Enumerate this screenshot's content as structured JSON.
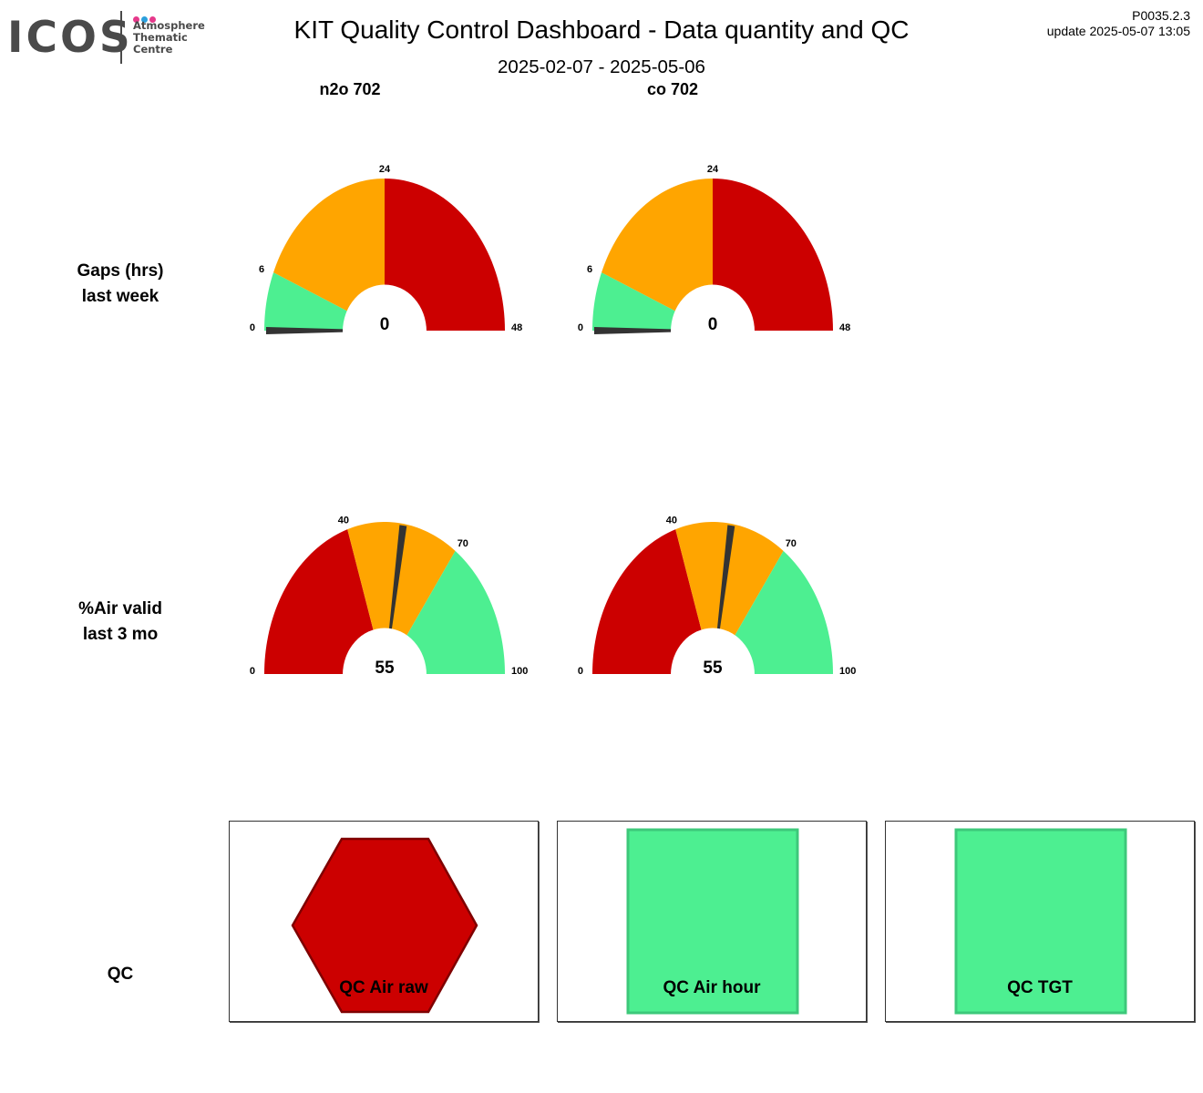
{
  "logo": {
    "wordmark": "ICOS",
    "subtitle_lines": [
      "Atmosphere",
      "Thematic",
      "Centre"
    ],
    "dot_colors": [
      "#e6398b",
      "#2b9fdc",
      "#e6398b"
    ]
  },
  "header": {
    "title": "KIT  Quality Control Dashboard - Data quantity and QC",
    "date_range": "2025-02-07 - 2025-05-06",
    "version": "P0035.2.3",
    "update": "update  2025-05-07 13:05"
  },
  "columns": [
    "n2o 702",
    "co 702"
  ],
  "rows": {
    "gaps": {
      "line1": "Gaps (hrs)",
      "line2": "last week"
    },
    "air": {
      "line1": "%Air valid",
      "line2": "last 3 mo"
    },
    "qc": "QC"
  },
  "colors": {
    "red": "#cc0000",
    "orange": "#ffa500",
    "green": "#4def91",
    "needle": "#333333",
    "hex_stroke": "#7f0000",
    "square_stroke": "#3dc87a"
  },
  "chart_data": [
    {
      "type": "gauge",
      "title": "n2o 702",
      "row": "Gaps (hrs) last week",
      "min": 0,
      "max": 48,
      "value": 0,
      "value_label": "0",
      "bands": [
        {
          "from": 0,
          "to": 6,
          "color": "#4def91"
        },
        {
          "from": 6,
          "to": 24,
          "color": "#ffa500"
        },
        {
          "from": 24,
          "to": 48,
          "color": "#cc0000"
        }
      ],
      "tick_labels": [
        {
          "value": 0,
          "label": "0"
        },
        {
          "value": 6,
          "label": "6"
        },
        {
          "value": 24,
          "label": "24"
        },
        {
          "value": 48,
          "label": "48"
        }
      ]
    },
    {
      "type": "gauge",
      "title": "co 702",
      "row": "Gaps (hrs) last week",
      "min": 0,
      "max": 48,
      "value": 0,
      "value_label": "0",
      "bands": [
        {
          "from": 0,
          "to": 6,
          "color": "#4def91"
        },
        {
          "from": 6,
          "to": 24,
          "color": "#ffa500"
        },
        {
          "from": 24,
          "to": 48,
          "color": "#cc0000"
        }
      ],
      "tick_labels": [
        {
          "value": 0,
          "label": "0"
        },
        {
          "value": 6,
          "label": "6"
        },
        {
          "value": 24,
          "label": "24"
        },
        {
          "value": 48,
          "label": "48"
        }
      ]
    },
    {
      "type": "gauge",
      "title": "n2o 702",
      "row": "%Air valid last 3 mo",
      "min": 0,
      "max": 100,
      "value": 55,
      "value_label": "55",
      "bands": [
        {
          "from": 0,
          "to": 40,
          "color": "#cc0000"
        },
        {
          "from": 40,
          "to": 70,
          "color": "#ffa500"
        },
        {
          "from": 70,
          "to": 100,
          "color": "#4def91"
        }
      ],
      "tick_labels": [
        {
          "value": 0,
          "label": "0"
        },
        {
          "value": 40,
          "label": "40"
        },
        {
          "value": 70,
          "label": "70"
        },
        {
          "value": 100,
          "label": "100"
        }
      ]
    },
    {
      "type": "gauge",
      "title": "co 702",
      "row": "%Air valid last 3 mo",
      "min": 0,
      "max": 100,
      "value": 55,
      "value_label": "55",
      "bands": [
        {
          "from": 0,
          "to": 40,
          "color": "#cc0000"
        },
        {
          "from": 40,
          "to": 70,
          "color": "#ffa500"
        },
        {
          "from": 70,
          "to": 100,
          "color": "#4def91"
        }
      ],
      "tick_labels": [
        {
          "value": 0,
          "label": "0"
        },
        {
          "value": 40,
          "label": "40"
        },
        {
          "value": 70,
          "label": "70"
        },
        {
          "value": 100,
          "label": "100"
        }
      ]
    },
    {
      "type": "status_indicators",
      "row": "QC",
      "items": [
        {
          "label": "QC Air raw",
          "shape": "hexagon",
          "status": "fail",
          "color": "#cc0000"
        },
        {
          "label": "QC Air hour",
          "shape": "square",
          "status": "ok",
          "color": "#4def91"
        },
        {
          "label": "QC TGT",
          "shape": "square",
          "status": "ok",
          "color": "#4def91"
        }
      ]
    }
  ]
}
